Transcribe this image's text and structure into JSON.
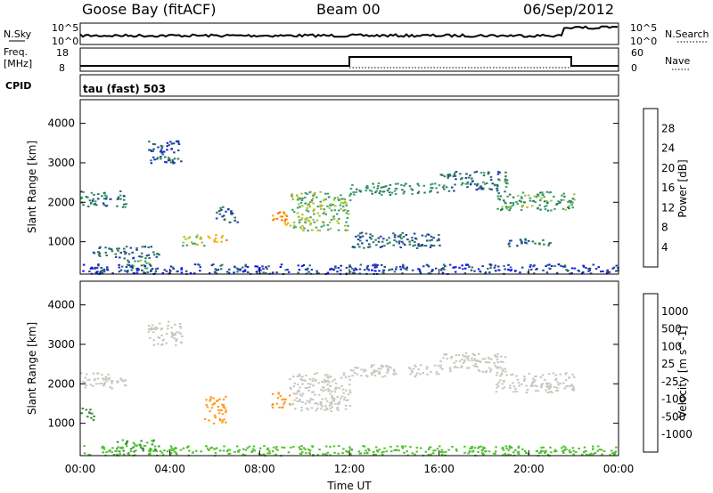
{
  "header": {
    "station": "Goose Bay (fitACF)",
    "beam": "Beam 00",
    "date": "06/Sep/2012"
  },
  "top_panels": {
    "nsky_label": "N.Sky",
    "nsearch_label": "N.Search",
    "nsky_ticks": [
      "10^5",
      "10^0"
    ],
    "nsearch_ticks": [
      "10^5",
      "10^0"
    ],
    "freq_label": "Freq.",
    "freq_unit": "[MHz]",
    "freq_ticks": [
      "18",
      "8"
    ],
    "nave_label": "Nave",
    "nave_ticks": [
      "60",
      "0"
    ],
    "cpid_label": "CPID",
    "cpid_value": "tau (fast) 503"
  },
  "colors": {
    "power_scale": [
      "#1010ff",
      "#1e3fa0",
      "#2a7a5a",
      "#3aa070",
      "#b0c030",
      "#f0b000",
      "#ff7000",
      "#ff1000"
    ],
    "velocity_scale": [
      "#ff0000",
      "#ff5a00",
      "#ff9a20",
      "#c8c8c0",
      "#c8c8c0",
      "#50c030",
      "#3a8a40",
      "#2050b0",
      "#1010c0"
    ]
  },
  "chart_data": [
    {
      "type": "heatmap",
      "name": "power",
      "ylabel": "Slant Range [km]",
      "ylim": [
        180,
        4600
      ],
      "yticks": [
        "4000",
        "3000",
        "2000",
        "1000"
      ],
      "colorbar_label": "Power [dB]",
      "colorbar_ticks": [
        "28",
        "24",
        "20",
        "16",
        "12",
        "8",
        "4"
      ],
      "regions": [
        {
          "t": [
            0.0,
            2.0
          ],
          "r": [
            1900,
            2300
          ],
          "v": 10
        },
        {
          "t": [
            0.5,
            3.5
          ],
          "r": [
            600,
            900
          ],
          "v": 8
        },
        {
          "t": [
            2.0,
            3.0
          ],
          "r": [
            250,
            550
          ],
          "v": 14
        },
        {
          "t": [
            3.0,
            4.5
          ],
          "r": [
            3000,
            3600
          ],
          "v": 6
        },
        {
          "t": [
            4.5,
            5.5
          ],
          "r": [
            900,
            1200
          ],
          "v": 16
        },
        {
          "t": [
            5.5,
            6.5
          ],
          "r": [
            1000,
            1200
          ],
          "v": 22
        },
        {
          "t": [
            6.0,
            7.0
          ],
          "r": [
            1500,
            1900
          ],
          "v": 8
        },
        {
          "t": [
            8.5,
            9.3
          ],
          "r": [
            1400,
            1800
          ],
          "v": 24
        },
        {
          "t": [
            9.3,
            12.0
          ],
          "r": [
            1300,
            2300
          ],
          "v": 16
        },
        {
          "t": [
            12.0,
            16.0
          ],
          "r": [
            2200,
            2500
          ],
          "v": 12
        },
        {
          "t": [
            12.0,
            16.0
          ],
          "r": [
            850,
            1250
          ],
          "v": 8
        },
        {
          "t": [
            16.0,
            19.0
          ],
          "r": [
            2300,
            2800
          ],
          "v": 10
        },
        {
          "t": [
            18.5,
            22.0
          ],
          "r": [
            1800,
            2300
          ],
          "v": 14
        },
        {
          "t": [
            19.0,
            21.0
          ],
          "r": [
            900,
            1100
          ],
          "v": 8
        },
        {
          "t": [
            0.0,
            24.0
          ],
          "r": [
            200,
            450
          ],
          "v": 6
        }
      ]
    },
    {
      "type": "heatmap",
      "name": "velocity",
      "ylabel": "Slant Range [km]",
      "ylim": [
        180,
        4600
      ],
      "yticks": [
        "4000",
        "3000",
        "2000",
        "1000"
      ],
      "colorbar_label": "Velocity [m s^-1]",
      "colorbar_ticks": [
        "1000",
        "500",
        "100",
        "25",
        "-25",
        "-100",
        "-500",
        "-1000"
      ],
      "xlabel": "Time UT",
      "xticks": [
        "00:00",
        "04:00",
        "08:00",
        "12:00",
        "16:00",
        "20:00",
        "00:00"
      ],
      "regions": [
        {
          "t": [
            0.0,
            2.0
          ],
          "r": [
            1900,
            2300
          ],
          "v": 0
        },
        {
          "t": [
            0.0,
            0.6
          ],
          "r": [
            1100,
            1400
          ],
          "v": 200
        },
        {
          "t": [
            1.5,
            3.5
          ],
          "r": [
            300,
            600
          ],
          "v": 100
        },
        {
          "t": [
            3.0,
            4.5
          ],
          "r": [
            3000,
            3600
          ],
          "v": 0
        },
        {
          "t": [
            5.5,
            6.5
          ],
          "r": [
            1000,
            1700
          ],
          "v": -300
        },
        {
          "t": [
            8.5,
            9.3
          ],
          "r": [
            1400,
            1800
          ],
          "v": -400
        },
        {
          "t": [
            9.3,
            12.0
          ],
          "r": [
            1300,
            2300
          ],
          "v": 0
        },
        {
          "t": [
            12.0,
            16.0
          ],
          "r": [
            2200,
            2500
          ],
          "v": 0
        },
        {
          "t": [
            16.0,
            19.0
          ],
          "r": [
            2300,
            2800
          ],
          "v": 0
        },
        {
          "t": [
            18.5,
            22.0
          ],
          "r": [
            1800,
            2300
          ],
          "v": 0
        },
        {
          "t": [
            0.0,
            24.0
          ],
          "r": [
            200,
            450
          ],
          "v": 50
        }
      ]
    }
  ]
}
